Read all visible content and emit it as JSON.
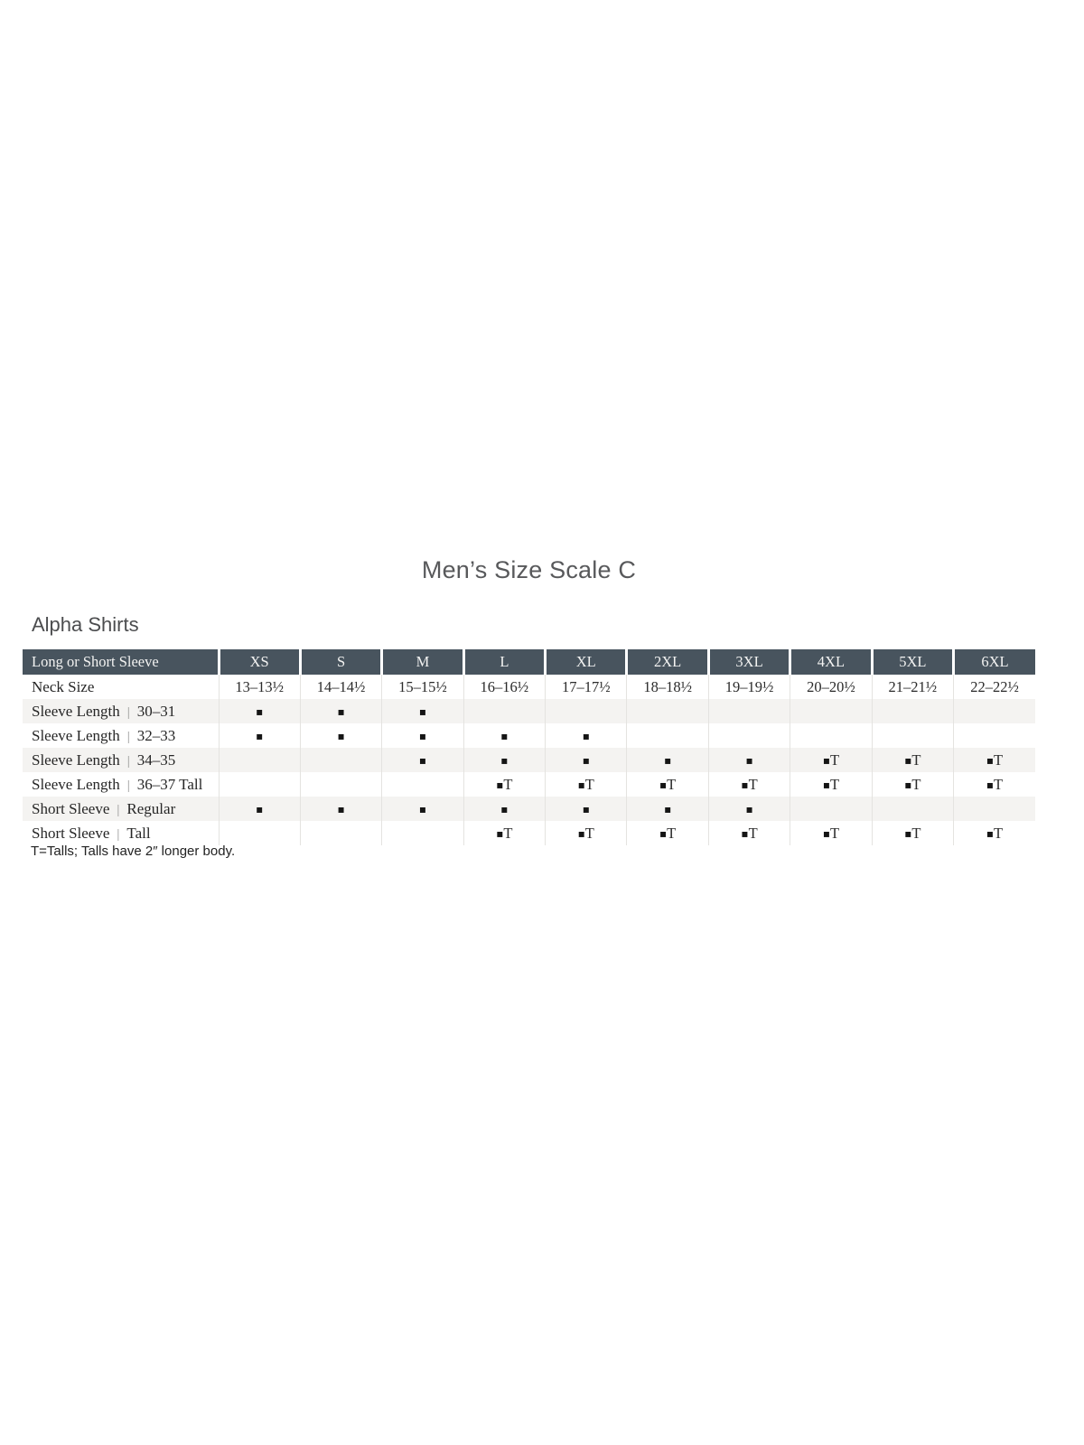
{
  "title": "Men’s Size Scale C",
  "section_title": "Alpha Shirts",
  "footnote": "T=Talls; Talls have 2″ longer body.",
  "colors": {
    "header_bg": "#48545e",
    "header_text": "#f3f3f2",
    "shaded_row_bg": "#f4f3f1",
    "body_text": "#2b2b2b",
    "title_text": "#58595b"
  },
  "table": {
    "label_separator": "|",
    "marks": {
      "square": "▪",
      "tall_letter": "T"
    },
    "header": {
      "label_column": "Long or Short Sleeve",
      "size_columns": [
        "XS",
        "S",
        "M",
        "L",
        "XL",
        "2XL",
        "3XL",
        "4XL",
        "5XL",
        "6XL"
      ]
    },
    "rows": [
      {
        "name": "Neck Size",
        "detail": "",
        "type": "text",
        "cells": [
          "13–13½",
          "14–14½",
          "15–15½",
          "16–16½",
          "17–17½",
          "18–18½",
          "19–19½",
          "20–20½",
          "21–21½",
          "22–22½"
        ]
      },
      {
        "name": "Sleeve Length",
        "detail": "30–31",
        "type": "marks",
        "cells": [
          "dot",
          "dot",
          "dot",
          "",
          "",
          "",
          "",
          "",
          "",
          ""
        ]
      },
      {
        "name": "Sleeve Length",
        "detail": "32–33",
        "type": "marks",
        "cells": [
          "dot",
          "dot",
          "dot",
          "dot",
          "dot",
          "",
          "",
          "",
          "",
          ""
        ]
      },
      {
        "name": "Sleeve Length",
        "detail": "34–35",
        "type": "marks",
        "cells": [
          "",
          "",
          "dot",
          "dot",
          "dot",
          "dot",
          "dot",
          "T",
          "T",
          "T"
        ]
      },
      {
        "name": "Sleeve Length",
        "detail": "36–37 Tall",
        "type": "marks",
        "cells": [
          "",
          "",
          "",
          "T",
          "T",
          "T",
          "T",
          "T",
          "T",
          "T"
        ]
      },
      {
        "name": "Short Sleeve",
        "detail": "Regular",
        "type": "marks",
        "cells": [
          "dot",
          "dot",
          "dot",
          "dot",
          "dot",
          "dot",
          "dot",
          "",
          "",
          ""
        ]
      },
      {
        "name": "Short Sleeve",
        "detail": "Tall",
        "type": "marks",
        "cells": [
          "",
          "",
          "",
          "T",
          "T",
          "T",
          "T",
          "T",
          "T",
          "T"
        ]
      }
    ]
  }
}
